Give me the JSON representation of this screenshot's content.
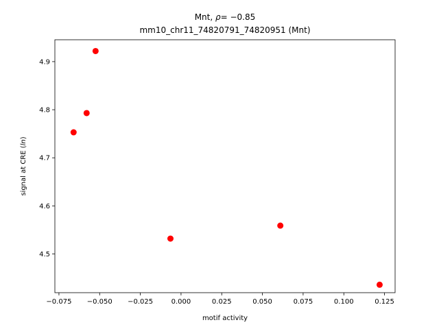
{
  "chart_data": {
    "type": "scatter",
    "title_line1_prefix": "Mnt, ",
    "title_line1_rho": "ρ",
    "title_line1_value": "= −0.85",
    "title_line2": "mm10_chr11_74820791_74820951 (Mnt)",
    "xlabel": "motif activity",
    "ylabel_prefix": "signal at CRE (",
    "ylabel_italic": "ln",
    "ylabel_suffix": ")",
    "xlim": [
      -0.0775,
      0.1315
    ],
    "ylim": [
      4.4195,
      4.9455
    ],
    "xticks": [
      -0.075,
      -0.05,
      -0.025,
      0.0,
      0.025,
      0.05,
      0.075,
      0.1,
      0.125
    ],
    "xtick_labels": [
      "−0.075",
      "−0.050",
      "−0.025",
      "0.000",
      "0.025",
      "0.050",
      "0.075",
      "0.100",
      "0.125"
    ],
    "yticks": [
      4.5,
      4.6,
      4.7,
      4.8,
      4.9
    ],
    "ytick_labels": [
      "4.5",
      "4.6",
      "4.7",
      "4.8",
      "4.9"
    ],
    "grid": false,
    "marker_color": "#ff0000",
    "points": [
      {
        "x": -0.0525,
        "y": 4.922
      },
      {
        "x": -0.058,
        "y": 4.793
      },
      {
        "x": -0.066,
        "y": 4.753
      },
      {
        "x": -0.0065,
        "y": 4.532
      },
      {
        "x": 0.061,
        "y": 4.559
      },
      {
        "x": 0.122,
        "y": 4.436
      }
    ]
  }
}
